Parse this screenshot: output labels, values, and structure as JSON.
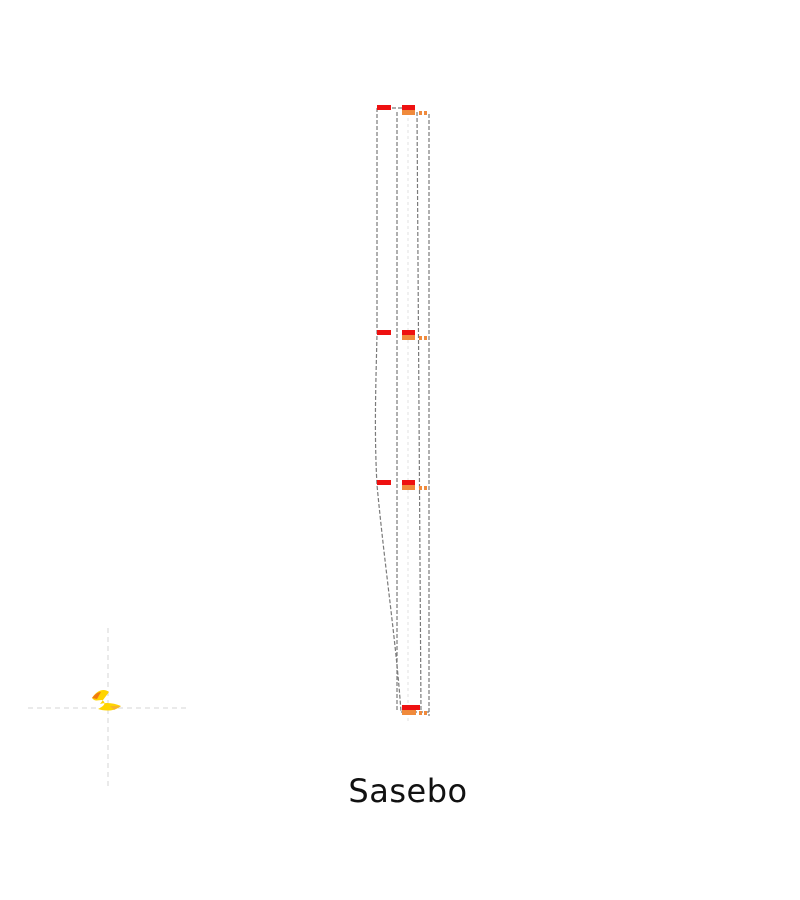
{
  "caption": "Sasebo",
  "colors": {
    "background": "#ffffff",
    "outline": "#7a7a7a",
    "guide": "#d6d6d6",
    "marker_primary": "#ee1111",
    "marker_secondary": "#f08a3c",
    "compass": "#ffd400",
    "compass_accent": "#f07a10",
    "text": "#111111"
  },
  "icons": {
    "compass": "compass-rose-icon"
  }
}
